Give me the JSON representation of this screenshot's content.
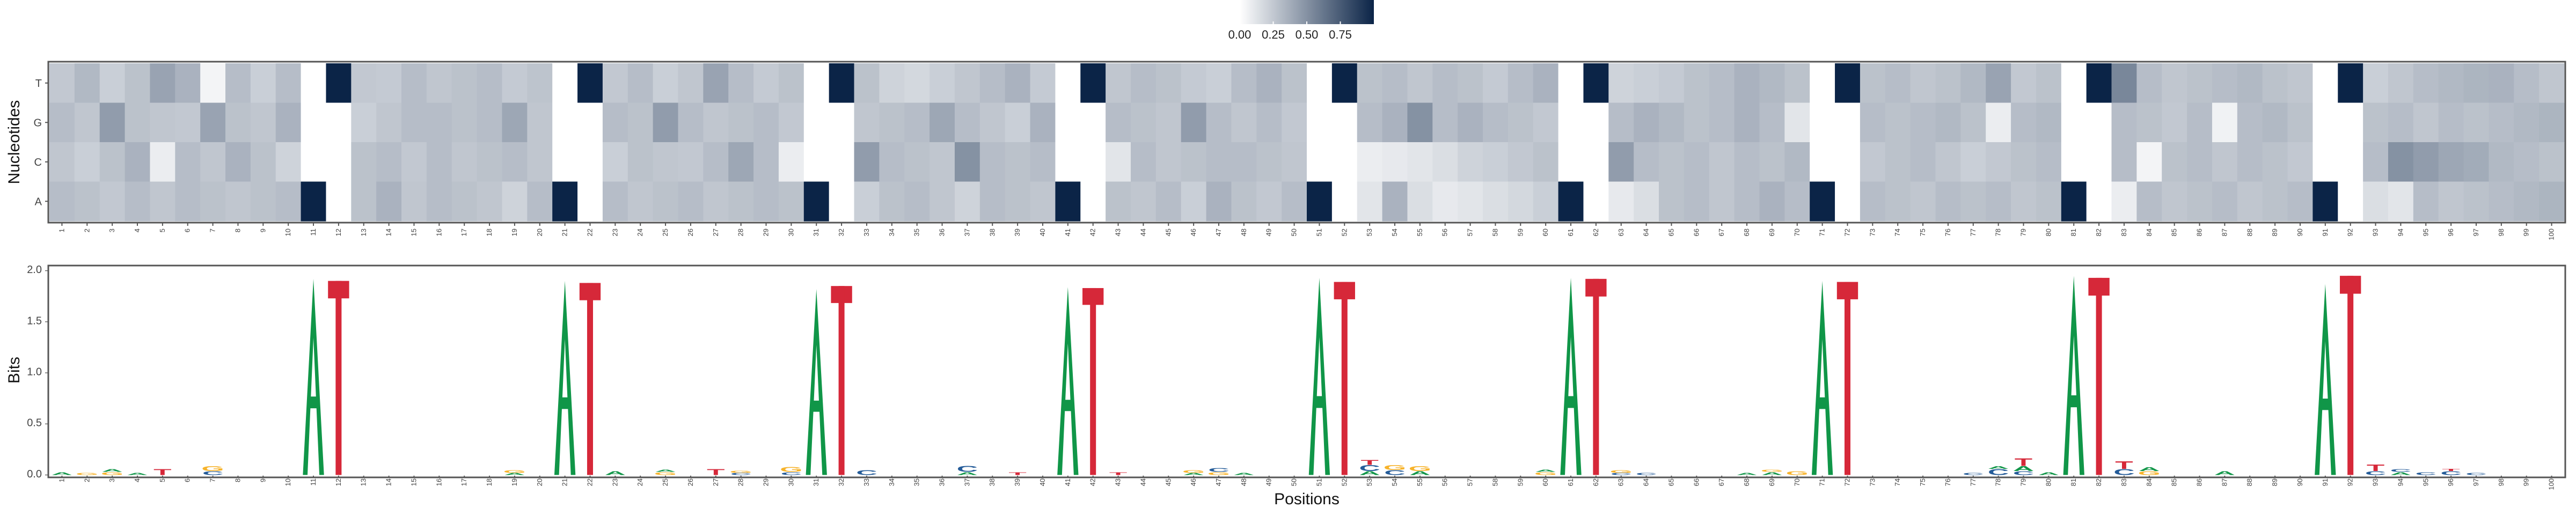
{
  "chart_data": [
    {
      "type": "heatmap",
      "ylabel": "Nucleotides",
      "rows": [
        "T",
        "G",
        "C",
        "A"
      ],
      "x": [
        1,
        2,
        3,
        4,
        5,
        6,
        7,
        8,
        9,
        10,
        11,
        12,
        13,
        14,
        15,
        16,
        17,
        18,
        19,
        20,
        21,
        22,
        23,
        24,
        25,
        26,
        27,
        28,
        29,
        30,
        31,
        32,
        33,
        34,
        35,
        36,
        37,
        38,
        39,
        40,
        41,
        42,
        43,
        44,
        45,
        46,
        47,
        48,
        49,
        50,
        51,
        52,
        53,
        54,
        55,
        56,
        57,
        58,
        59,
        60,
        61,
        62,
        63,
        64,
        65,
        66,
        67,
        68,
        69,
        70,
        71,
        72,
        73,
        74,
        75,
        76,
        77,
        78,
        79,
        80,
        81,
        82,
        83,
        84,
        85,
        86,
        87,
        88,
        89,
        90,
        91,
        92,
        93,
        94,
        95,
        96,
        97,
        98,
        99,
        100
      ],
      "values": [
        [
          0.25,
          0.32,
          0.22,
          0.28,
          0.42,
          0.35,
          0.05,
          0.3,
          0.22,
          0.3,
          0.0,
          1.0,
          0.25,
          0.24,
          0.3,
          0.26,
          0.28,
          0.3,
          0.24,
          0.27,
          0.0,
          1.0,
          0.25,
          0.3,
          0.22,
          0.26,
          0.42,
          0.3,
          0.24,
          0.28,
          0.0,
          1.0,
          0.28,
          0.2,
          0.18,
          0.22,
          0.26,
          0.3,
          0.35,
          0.24,
          0.0,
          1.0,
          0.26,
          0.3,
          0.28,
          0.24,
          0.22,
          0.3,
          0.35,
          0.28,
          0.0,
          1.0,
          0.28,
          0.3,
          0.26,
          0.3,
          0.28,
          0.24,
          0.3,
          0.35,
          0.0,
          1.0,
          0.2,
          0.22,
          0.24,
          0.28,
          0.3,
          0.35,
          0.32,
          0.28,
          0.0,
          1.0,
          0.28,
          0.3,
          0.26,
          0.28,
          0.32,
          0.42,
          0.25,
          0.28,
          0.0,
          1.0,
          0.55,
          0.3,
          0.26,
          0.28,
          0.3,
          0.32,
          0.28,
          0.26,
          0.0,
          1.0,
          0.22,
          0.26,
          0.3,
          0.32,
          0.34,
          0.35,
          0.3,
          0.26
        ],
        [
          0.3,
          0.26,
          0.45,
          0.28,
          0.26,
          0.25,
          0.42,
          0.28,
          0.26,
          0.35,
          0.0,
          0.0,
          0.22,
          0.26,
          0.3,
          0.3,
          0.28,
          0.3,
          0.4,
          0.26,
          0.0,
          0.0,
          0.3,
          0.28,
          0.45,
          0.3,
          0.26,
          0.28,
          0.3,
          0.25,
          0.0,
          0.0,
          0.26,
          0.28,
          0.3,
          0.4,
          0.3,
          0.26,
          0.22,
          0.35,
          0.0,
          0.0,
          0.3,
          0.28,
          0.26,
          0.45,
          0.3,
          0.26,
          0.3,
          0.25,
          0.0,
          0.0,
          0.3,
          0.35,
          0.5,
          0.3,
          0.35,
          0.3,
          0.28,
          0.25,
          0.0,
          0.0,
          0.3,
          0.35,
          0.32,
          0.28,
          0.3,
          0.35,
          0.3,
          0.12,
          0.0,
          0.0,
          0.3,
          0.28,
          0.3,
          0.32,
          0.28,
          0.08,
          0.3,
          0.32,
          0.0,
          0.0,
          0.3,
          0.28,
          0.25,
          0.3,
          0.06,
          0.3,
          0.32,
          0.28,
          0.0,
          0.0,
          0.28,
          0.3,
          0.26,
          0.3,
          0.28,
          0.3,
          0.32,
          0.34
        ],
        [
          0.26,
          0.22,
          0.28,
          0.35,
          0.08,
          0.3,
          0.26,
          0.35,
          0.28,
          0.2,
          0.0,
          0.0,
          0.28,
          0.3,
          0.25,
          0.3,
          0.26,
          0.28,
          0.3,
          0.26,
          0.0,
          0.0,
          0.22,
          0.28,
          0.26,
          0.25,
          0.3,
          0.4,
          0.3,
          0.08,
          0.0,
          0.0,
          0.45,
          0.3,
          0.28,
          0.26,
          0.5,
          0.3,
          0.28,
          0.3,
          0.0,
          0.0,
          0.12,
          0.3,
          0.26,
          0.28,
          0.3,
          0.3,
          0.28,
          0.26,
          0.0,
          0.0,
          0.08,
          0.1,
          0.12,
          0.15,
          0.2,
          0.22,
          0.25,
          0.28,
          0.0,
          0.0,
          0.45,
          0.3,
          0.28,
          0.3,
          0.26,
          0.3,
          0.28,
          0.32,
          0.0,
          0.0,
          0.25,
          0.28,
          0.3,
          0.26,
          0.22,
          0.25,
          0.28,
          0.3,
          0.0,
          0.0,
          0.3,
          0.05,
          0.28,
          0.3,
          0.26,
          0.3,
          0.28,
          0.25,
          0.0,
          0.0,
          0.3,
          0.5,
          0.45,
          0.4,
          0.38,
          0.32,
          0.3,
          0.28
        ],
        [
          0.3,
          0.28,
          0.25,
          0.3,
          0.26,
          0.3,
          0.28,
          0.26,
          0.28,
          0.3,
          1.0,
          0.0,
          0.28,
          0.35,
          0.26,
          0.3,
          0.28,
          0.26,
          0.2,
          0.3,
          1.0,
          0.0,
          0.3,
          0.26,
          0.28,
          0.3,
          0.26,
          0.28,
          0.3,
          0.28,
          1.0,
          0.0,
          0.22,
          0.28,
          0.3,
          0.26,
          0.2,
          0.3,
          0.28,
          0.26,
          1.0,
          0.0,
          0.28,
          0.26,
          0.3,
          0.22,
          0.35,
          0.28,
          0.25,
          0.3,
          1.0,
          0.0,
          0.12,
          0.35,
          0.15,
          0.1,
          0.12,
          0.15,
          0.18,
          0.22,
          1.0,
          0.0,
          0.1,
          0.15,
          0.28,
          0.3,
          0.26,
          0.3,
          0.35,
          0.3,
          1.0,
          0.0,
          0.3,
          0.28,
          0.26,
          0.3,
          0.28,
          0.3,
          0.26,
          0.28,
          1.0,
          0.0,
          0.08,
          0.3,
          0.26,
          0.28,
          0.3,
          0.26,
          0.28,
          0.3,
          1.0,
          0.0,
          0.15,
          0.12,
          0.3,
          0.26,
          0.28,
          0.3,
          0.32,
          0.34
        ]
      ],
      "colorbar_ticks": [
        "0.00",
        "0.25",
        "0.50",
        "0.75"
      ],
      "colors": {
        "low": "#ffffff",
        "high": "#0b2447"
      }
    },
    {
      "type": "sequence_logo",
      "xlabel": "Positions",
      "ylabel": "Bits",
      "ylim": [
        0,
        2.0
      ],
      "yticks": [
        "0.0",
        "0.5",
        "1.0",
        "1.5",
        "2.0"
      ],
      "x": [
        1,
        2,
        3,
        4,
        5,
        6,
        7,
        8,
        9,
        10,
        11,
        12,
        13,
        14,
        15,
        16,
        17,
        18,
        19,
        20,
        21,
        22,
        23,
        24,
        25,
        26,
        27,
        28,
        29,
        30,
        31,
        32,
        33,
        34,
        35,
        36,
        37,
        38,
        39,
        40,
        41,
        42,
        43,
        44,
        45,
        46,
        47,
        48,
        49,
        50,
        51,
        52,
        53,
        54,
        55,
        56,
        57,
        58,
        59,
        60,
        61,
        62,
        63,
        64,
        65,
        66,
        67,
        68,
        69,
        70,
        71,
        72,
        73,
        74,
        75,
        76,
        77,
        78,
        79,
        80,
        81,
        82,
        83,
        84,
        85,
        86,
        87,
        88,
        89,
        90,
        91,
        92,
        93,
        94,
        95,
        96,
        97,
        98,
        99,
        100
      ],
      "letters": [
        [
          [
            "A",
            0.03
          ]
        ],
        [
          [
            "G",
            0.02
          ]
        ],
        [
          [
            "G",
            0.03
          ],
          [
            "A",
            0.03
          ]
        ],
        [
          [
            "A",
            0.02
          ]
        ],
        [
          [
            "T",
            0.06
          ]
        ],
        [],
        [
          [
            "C",
            0.04
          ],
          [
            "G",
            0.05
          ]
        ],
        [],
        [],
        [],
        [
          [
            "A",
            1.92
          ]
        ],
        [
          [
            "T",
            1.9
          ]
        ],
        [],
        [],
        [],
        [],
        [],
        [],
        [
          [
            "A",
            0.02
          ],
          [
            "G",
            0.03
          ]
        ],
        [],
        [
          [
            "A",
            1.9
          ]
        ],
        [
          [
            "T",
            1.88
          ]
        ],
        [
          [
            "A",
            0.04
          ]
        ],
        [],
        [
          [
            "G",
            0.03
          ],
          [
            "A",
            0.02
          ]
        ],
        [],
        [
          [
            "T",
            0.06
          ]
        ],
        [
          [
            "C",
            0.02
          ],
          [
            "G",
            0.02
          ]
        ],
        [],
        [
          [
            "C",
            0.03
          ],
          [
            "G",
            0.05
          ]
        ],
        [
          [
            "A",
            1.82
          ]
        ],
        [
          [
            "T",
            1.85
          ]
        ],
        [
          [
            "C",
            0.05
          ]
        ],
        [],
        [],
        [],
        [
          [
            "A",
            0.03
          ],
          [
            "C",
            0.06
          ]
        ],
        [],
        [
          [
            "T",
            0.03
          ]
        ],
        [],
        [
          [
            "A",
            1.84
          ]
        ],
        [
          [
            "T",
            1.83
          ]
        ],
        [
          [
            "T",
            0.03
          ]
        ],
        [],
        [],
        [
          [
            "A",
            0.02
          ],
          [
            "G",
            0.03
          ]
        ],
        [
          [
            "G",
            0.03
          ],
          [
            "C",
            0.04
          ]
        ],
        [
          [
            "A",
            0.02
          ]
        ],
        [],
        [],
        [
          [
            "A",
            1.93
          ]
        ],
        [
          [
            "T",
            1.89
          ]
        ],
        [
          [
            "A",
            0.04
          ],
          [
            "C",
            0.06
          ],
          [
            "T",
            0.05
          ]
        ],
        [
          [
            "C",
            0.05
          ],
          [
            "G",
            0.05
          ]
        ],
        [
          [
            "A",
            0.04
          ],
          [
            "G",
            0.05
          ]
        ],
        [],
        [],
        [],
        [],
        [
          [
            "G",
            0.03
          ],
          [
            "A",
            0.02
          ]
        ],
        [
          [
            "A",
            1.93
          ]
        ],
        [
          [
            "T",
            1.92
          ]
        ],
        [
          [
            "C",
            0.02
          ],
          [
            "G",
            0.03
          ]
        ],
        [
          [
            "C",
            0.02
          ]
        ],
        [],
        [],
        [],
        [
          [
            "A",
            0.02
          ]
        ],
        [
          [
            "A",
            0.03
          ],
          [
            "G",
            0.02
          ]
        ],
        [
          [
            "G",
            0.04
          ]
        ],
        [
          [
            "A",
            1.9
          ]
        ],
        [
          [
            "T",
            1.89
          ]
        ],
        [],
        [],
        [],
        [],
        [
          [
            "C",
            0.02
          ]
        ],
        [
          [
            "C",
            0.06
          ],
          [
            "A",
            0.03
          ]
        ],
        [
          [
            "C",
            0.04
          ],
          [
            "A",
            0.05
          ],
          [
            "T",
            0.08
          ]
        ],
        [
          [
            "A",
            0.03
          ]
        ],
        [
          [
            "A",
            1.95
          ]
        ],
        [
          [
            "T",
            1.93
          ]
        ],
        [
          [
            "C",
            0.06
          ],
          [
            "T",
            0.08
          ]
        ],
        [
          [
            "G",
            0.04
          ],
          [
            "A",
            0.04
          ]
        ],
        [],
        [],
        [
          [
            "A",
            0.04
          ]
        ],
        [],
        [],
        [],
        [
          [
            "A",
            1.87
          ]
        ],
        [
          [
            "T",
            1.95
          ]
        ],
        [
          [
            "C",
            0.04
          ],
          [
            "T",
            0.07
          ]
        ],
        [
          [
            "A",
            0.03
          ],
          [
            "C",
            0.03
          ]
        ],
        [
          [
            "C",
            0.03
          ]
        ],
        [
          [
            "C",
            0.04
          ],
          [
            "T",
            0.02
          ]
        ],
        [
          [
            "C",
            0.02
          ]
        ],
        [],
        [],
        []
      ],
      "colors": {
        "A": "#109648",
        "C": "#255c99",
        "G": "#f7b32b",
        "T": "#d62839"
      }
    }
  ]
}
